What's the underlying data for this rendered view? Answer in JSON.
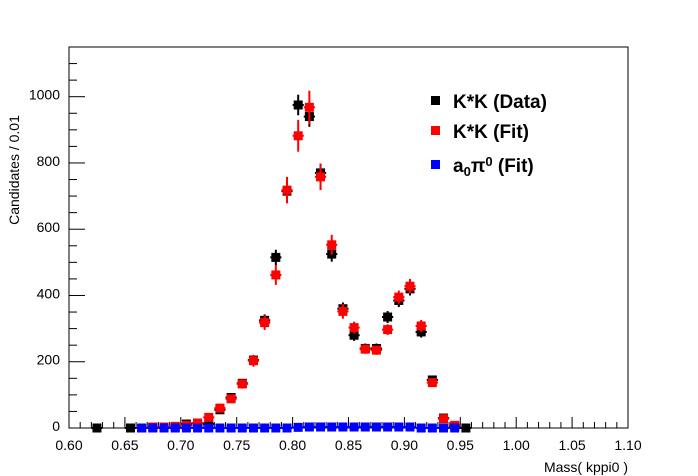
{
  "chart_data": {
    "type": "scatter",
    "title": "",
    "xlabel": "Mass( kppi0 )",
    "ylabel": "Candidates / 0.01",
    "xlim": [
      0.6,
      1.1
    ],
    "ylim": [
      0,
      1150
    ],
    "x_ticks": [
      "0.60",
      "0.65",
      "0.70",
      "0.75",
      "0.80",
      "0.85",
      "0.90",
      "0.95",
      "1.00",
      "1.05",
      "1.10"
    ],
    "y_ticks": [
      "0",
      "200",
      "400",
      "600",
      "800",
      "1000"
    ],
    "legend_position": "top-right",
    "series": [
      {
        "name": "K*K (Data)",
        "color": "#000000",
        "x": [
          0.625,
          0.655,
          0.665,
          0.675,
          0.685,
          0.695,
          0.705,
          0.715,
          0.725,
          0.735,
          0.745,
          0.755,
          0.765,
          0.775,
          0.785,
          0.795,
          0.805,
          0.815,
          0.825,
          0.835,
          0.845,
          0.855,
          0.865,
          0.875,
          0.885,
          0.895,
          0.905,
          0.915,
          0.925,
          0.935,
          0.945,
          0.955
        ],
        "y": [
          0,
          0,
          0,
          2,
          2,
          3,
          12,
          15,
          12,
          55,
          92,
          135,
          205,
          325,
          515,
          715,
          975,
          940,
          770,
          525,
          360,
          280,
          240,
          240,
          335,
          385,
          420,
          290,
          145,
          30,
          5,
          0
        ],
        "err": [
          0,
          0,
          0,
          1,
          1,
          2,
          3,
          4,
          3,
          7,
          10,
          12,
          14,
          18,
          23,
          27,
          31,
          31,
          28,
          23,
          19,
          17,
          15,
          15,
          18,
          20,
          20,
          17,
          12,
          5,
          2,
          0
        ]
      },
      {
        "name": "K*K (Fit)",
        "color": "#ff0000",
        "x": [
          0.665,
          0.675,
          0.685,
          0.695,
          0.705,
          0.715,
          0.725,
          0.735,
          0.745,
          0.755,
          0.765,
          0.775,
          0.785,
          0.795,
          0.805,
          0.815,
          0.825,
          0.835,
          0.845,
          0.855,
          0.865,
          0.875,
          0.885,
          0.895,
          0.905,
          0.915,
          0.925,
          0.935,
          0.945
        ],
        "y": [
          0,
          3,
          3,
          5,
          8,
          15,
          32,
          60,
          88,
          133,
          203,
          318,
          462,
          718,
          882,
          968,
          758,
          553,
          352,
          303,
          238,
          235,
          297,
          395,
          428,
          308,
          137,
          28,
          8
        ],
        "err": [
          0,
          2,
          2,
          3,
          4,
          5,
          7,
          9,
          11,
          14,
          18,
          22,
          30,
          40,
          48,
          50,
          40,
          30,
          22,
          18,
          14,
          14,
          16,
          20,
          22,
          18,
          12,
          6,
          3
        ]
      },
      {
        "name": "a0π0 (Fit)",
        "color": "#0000ff",
        "x": [
          0.665,
          0.675,
          0.685,
          0.695,
          0.705,
          0.715,
          0.725,
          0.735,
          0.745,
          0.755,
          0.765,
          0.775,
          0.785,
          0.795,
          0.805,
          0.815,
          0.825,
          0.835,
          0.845,
          0.855,
          0.865,
          0.875,
          0.885,
          0.895,
          0.905,
          0.915,
          0.925,
          0.935,
          0.945
        ],
        "y": [
          0,
          0,
          0,
          0,
          0,
          0,
          0,
          0,
          0,
          0,
          0,
          0,
          0,
          0,
          2,
          3,
          3,
          3,
          3,
          3,
          3,
          3,
          3,
          3,
          3,
          0,
          0,
          0,
          0
        ],
        "err": [
          0,
          0,
          0,
          0,
          0,
          0,
          0,
          0,
          0,
          0,
          0,
          0,
          0,
          0,
          0,
          0,
          0,
          0,
          0,
          0,
          0,
          0,
          0,
          0,
          0,
          0,
          0,
          0,
          0
        ]
      }
    ],
    "legend": [
      {
        "label_main": "K*K (Data)",
        "color": "#000000"
      },
      {
        "label_main": "K*K (Fit)",
        "color": "#ff0000"
      },
      {
        "label_main": "a",
        "sub": "0",
        "mid": "π",
        "sup": "0",
        "tail": " (Fit)",
        "color": "#0000ff"
      }
    ]
  }
}
